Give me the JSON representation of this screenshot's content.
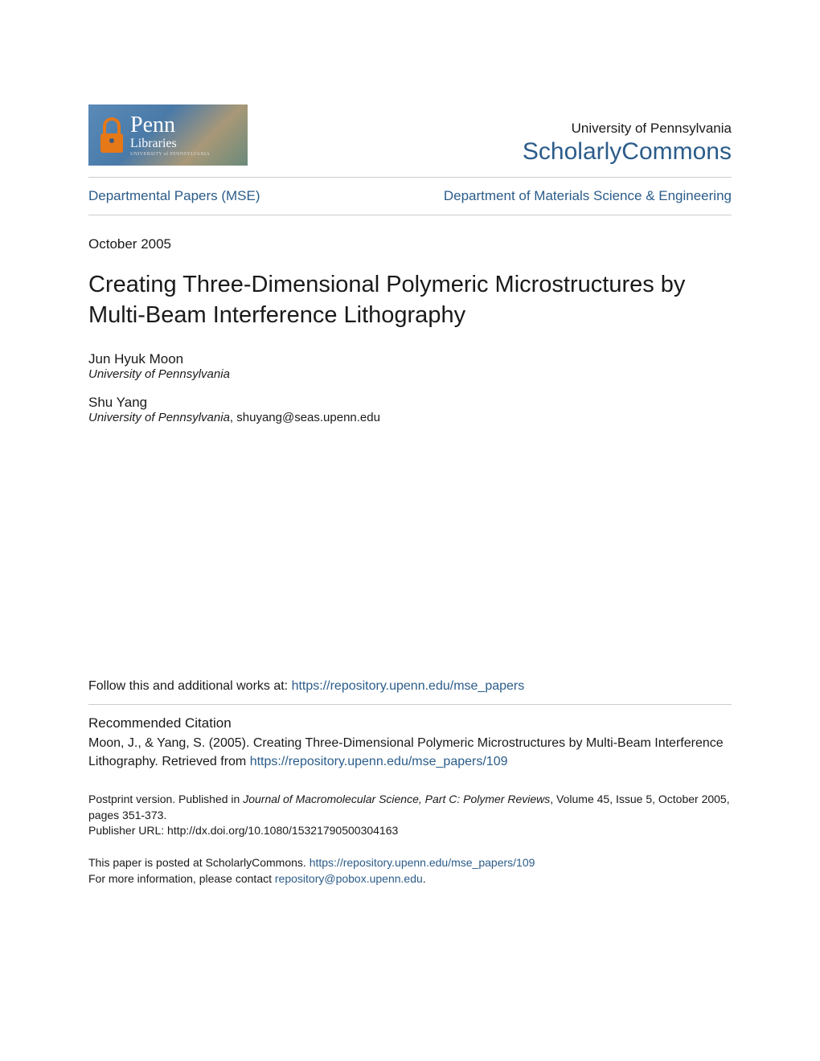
{
  "header": {
    "logo": {
      "penn": "Penn",
      "libraries": "Libraries",
      "subtext": "UNIVERSITY of PENNSYLVANIA"
    },
    "university_name": "University of Pennsylvania",
    "scholarly_commons": "ScholarlyCommons"
  },
  "nav": {
    "left": "Departmental Papers (MSE)",
    "right": "Department of Materials Science & Engineering"
  },
  "date": "October 2005",
  "title": "Creating Three-Dimensional Polymeric Microstructures by Multi-Beam Interference Lithography",
  "authors": [
    {
      "name": "Jun Hyuk Moon",
      "affiliation": "University of Pennsylvania",
      "email": ""
    },
    {
      "name": "Shu Yang",
      "affiliation": "University of Pennsylvania",
      "email": ", shuyang@seas.upenn.edu"
    }
  ],
  "follow": {
    "prefix": "Follow this and additional works at: ",
    "link": "https://repository.upenn.edu/mse_papers"
  },
  "citation": {
    "heading": "Recommended Citation",
    "text": "Moon, J., & Yang, S. (2005). Creating Three-Dimensional Polymeric Microstructures by Multi-Beam Interference Lithography. Retrieved from ",
    "link": "https://repository.upenn.edu/mse_papers/109"
  },
  "footer": {
    "postprint_prefix": "Postprint version. Published in ",
    "journal": "Journal of Macromolecular Science, Part C: Polymer Reviews",
    "postprint_suffix": ", Volume 45, Issue 5, October 2005, pages 351-373.",
    "publisher_url": "Publisher URL: http://dx.doi.org/10.1080/15321790500304163",
    "posted_prefix": "This paper is posted at ScholarlyCommons. ",
    "posted_link": "https://repository.upenn.edu/mse_papers/109",
    "contact_prefix": "For more information, please contact ",
    "contact_email": "repository@pobox.upenn.edu",
    "contact_suffix": "."
  },
  "colors": {
    "link": "#2b5c8a",
    "text": "#1a1a1a",
    "divider": "#cccccc",
    "logo_accent": "#e67817",
    "background": "#ffffff"
  }
}
